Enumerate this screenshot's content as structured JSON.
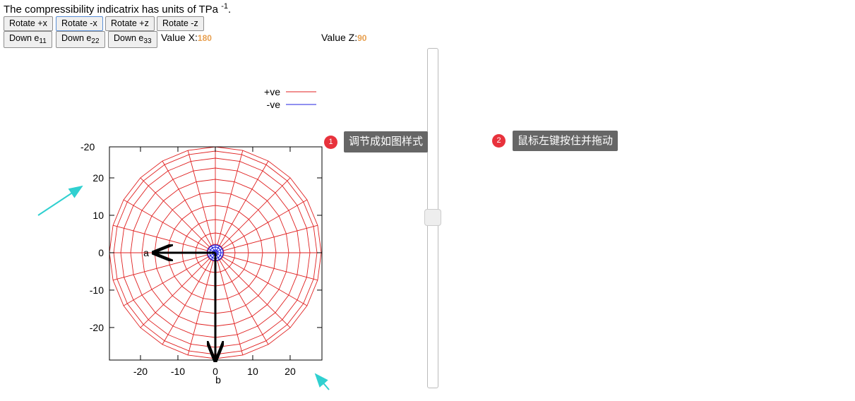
{
  "header": {
    "text": "The compressibility indicatrix has units of TPa",
    "sup": "-1",
    "end": "."
  },
  "buttons_row1": [
    "Rotate +x",
    "Rotate -x",
    "Rotate +z",
    "Rotate -z"
  ],
  "buttons_row2": [
    {
      "text": "Down e",
      "sub": "11"
    },
    {
      "text": "Down e",
      "sub": "22"
    },
    {
      "text": "Down e",
      "sub": "33"
    }
  ],
  "value_x": {
    "label": "Value X:",
    "value": "180"
  },
  "value_z": {
    "label": "Value Z:",
    "value": "90"
  },
  "plot": {
    "legend": [
      {
        "name": "+ve",
        "color": "#e02020"
      },
      {
        "name": "-ve",
        "color": "#2020e0"
      }
    ],
    "xlim": [
      -28.3,
      28.5
    ],
    "ylim": [
      -28.7,
      28.3
    ],
    "xticks": [
      -20,
      -10,
      0,
      10,
      20
    ],
    "yticks": [
      20,
      10,
      0,
      -10,
      -20
    ],
    "corner_label": "-20",
    "axis_a": "a",
    "axis_b": "b"
  },
  "tips": [
    {
      "num": "1",
      "text": "调节成如图样式"
    },
    {
      "num": "2",
      "text": "鼠标左键按住并拖动"
    }
  ]
}
